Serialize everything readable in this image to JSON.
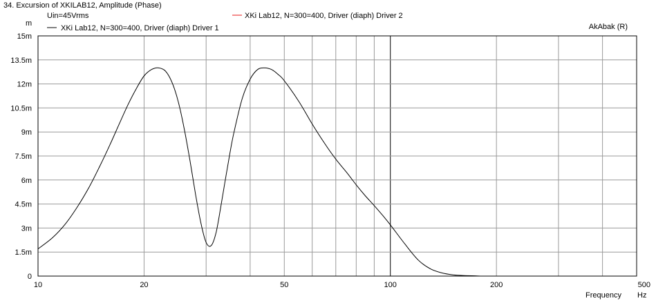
{
  "header": {
    "title": "34. Excursion of XKILAB12, Amplitude (Phase)",
    "condition": "Uin=45Vrms",
    "brand": "AkAbak (R)",
    "y_unit": "m",
    "x_axis_label": "Frequency",
    "x_unit": "Hz"
  },
  "chart_data": {
    "type": "line",
    "x_scale": "log",
    "xlim": [
      10,
      500
    ],
    "ylim": [
      0,
      15
    ],
    "y_unit": "mm",
    "x_ticks": [
      "10",
      "20",
      "50",
      "100",
      "200",
      "500"
    ],
    "y_ticks": [
      "0",
      "1.5m",
      "3m",
      "4.5m",
      "6m",
      "7.5m",
      "9m",
      "10.5m",
      "12m",
      "13.5m",
      "15m"
    ],
    "grid": true,
    "legend_placement": "top",
    "series": [
      {
        "name": "XKi Lab12, N=300=400, Driver (diaph) Driver 1",
        "color": "#000000",
        "x": [
          10,
          11,
          12,
          13,
          14,
          15,
          16,
          17,
          18,
          19,
          20,
          21,
          22,
          23,
          24,
          25,
          26,
          27,
          28,
          29,
          30,
          31,
          32,
          33,
          34,
          35,
          36,
          38,
          40,
          42,
          44,
          46,
          48,
          50,
          55,
          60,
          65,
          70,
          75,
          80,
          85,
          90,
          95,
          100,
          110,
          120,
          130,
          140,
          150,
          160,
          170,
          180
        ],
        "y": [
          1.7,
          2.4,
          3.3,
          4.4,
          5.6,
          6.9,
          8.2,
          9.5,
          10.7,
          11.7,
          12.5,
          12.9,
          13.0,
          12.8,
          12.1,
          10.9,
          9.2,
          7.2,
          5.1,
          3.3,
          2.1,
          1.9,
          2.7,
          4.3,
          6.0,
          7.6,
          9.0,
          11.1,
          12.3,
          12.9,
          13.0,
          12.9,
          12.6,
          12.2,
          10.9,
          9.5,
          8.3,
          7.3,
          6.5,
          5.7,
          5.0,
          4.4,
          3.8,
          3.2,
          2.0,
          1.0,
          0.45,
          0.2,
          0.08,
          0.04,
          0.02,
          0.0
        ]
      },
      {
        "name": "XKi Lab12, N=300=400, Driver (diaph) Driver 2",
        "color": "#e8191a",
        "x": [],
        "y": []
      }
    ]
  }
}
